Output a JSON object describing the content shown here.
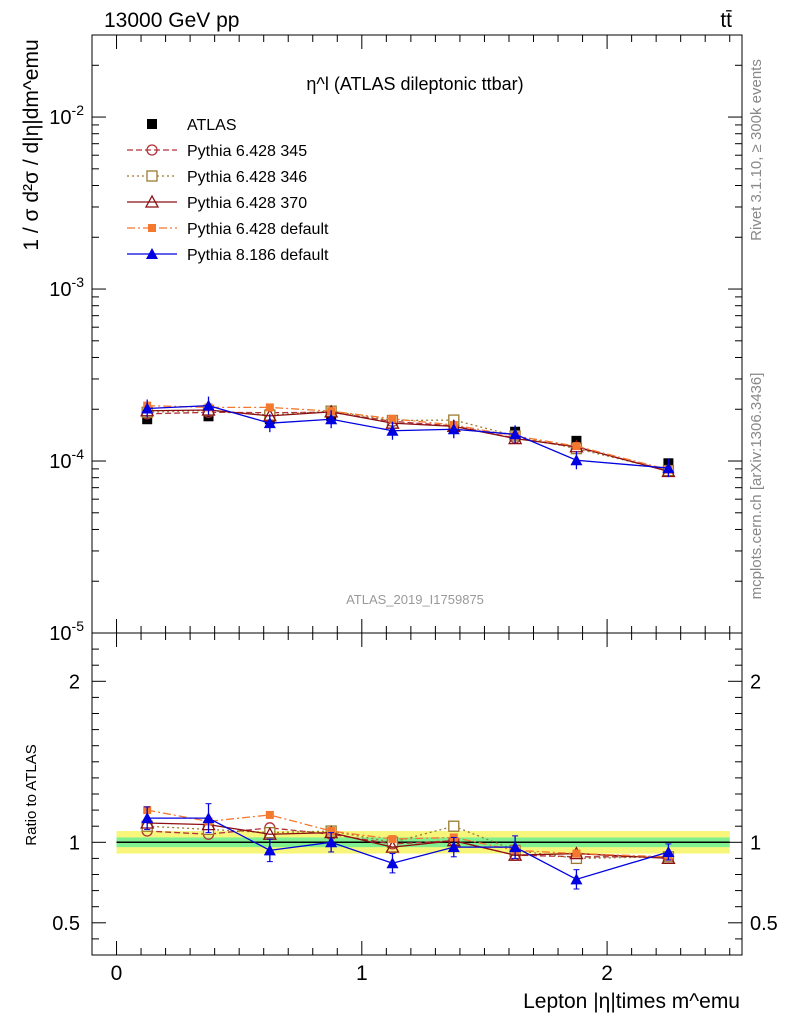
{
  "header": {
    "energy_label": "13000 GeV pp",
    "process_label": "tt̄"
  },
  "side_labels": {
    "rivet": "Rivet 3.1.10, ≥ 300k events",
    "mcplots": "mcplots.cern.ch [arXiv:1306.3436]"
  },
  "colors": {
    "atlas": "#000000",
    "p345": "#b3303a",
    "p346": "#9a7b30",
    "p370": "#8b0f14",
    "p6default": "#f5782f",
    "p8default": "#0000e0",
    "band_inner": "#7fef8f",
    "band_outer": "#f7f57a"
  },
  "chart_data": [
    {
      "type": "line",
      "panel": "main",
      "title": "η^l (ATLAS dileptonic ttbar)",
      "ylabel": "1 / σ d²σ / d|η|dm^emu",
      "watermark": "ATLAS_2019_I1759875",
      "yscale": "log",
      "ylim": [
        1e-05,
        0.03
      ],
      "xlim": [
        -0.1,
        2.55
      ],
      "y_ticks": [
        "10^-5",
        "10^-4",
        "10^-3",
        "10^-2"
      ],
      "x": [
        0.125,
        0.375,
        0.625,
        0.875,
        1.125,
        1.375,
        1.625,
        1.875,
        2.25
      ],
      "series": [
        {
          "name": "ATLAS",
          "key": "atlas",
          "marker": "square-filled",
          "dash": "none",
          "values": [
            0.000175,
            0.000182,
            0.000175,
            0.000183,
            0.000172,
            0.000158,
            0.000148,
            0.000131,
            9.7e-05
          ]
        },
        {
          "name": "Pythia 6.428 345",
          "key": "p345",
          "marker": "circle-open",
          "dash": "6,3",
          "values": [
            0.000188,
            0.000192,
            0.000191,
            0.000192,
            0.00017,
            0.00016,
            0.000136,
            0.00012,
            8.8e-05
          ]
        },
        {
          "name": "Pythia 6.428 346",
          "key": "p346",
          "marker": "square-open",
          "dash": "2,3",
          "values": [
            0.000192,
            0.000197,
            0.000185,
            0.000195,
            0.000172,
            0.000173,
            0.00014,
            0.000118,
            8.8e-05
          ]
        },
        {
          "name": "Pythia 6.428 370",
          "key": "p370",
          "marker": "triangle-open",
          "dash": "none",
          "values": [
            0.000196,
            0.000198,
            0.000183,
            0.000193,
            0.000166,
            0.000159,
            0.000135,
            0.000121,
            8.7e-05
          ]
        },
        {
          "name": "Pythia 6.428 default",
          "key": "p6default",
          "marker": "square-filled-small",
          "dash": "8,3,2,3",
          "values": [
            0.00021,
            0.000205,
            0.000205,
            0.000195,
            0.000176,
            0.000162,
            0.00014,
            0.000122,
            8.9e-05
          ]
        },
        {
          "name": "Pythia 8.186 default",
          "key": "p8default",
          "marker": "triangle-filled",
          "dash": "none",
          "values": [
            0.000202,
            0.00021,
            0.000166,
            0.000175,
            0.00015,
            0.000153,
            0.000143,
            0.000101,
            9.1e-05
          ]
        }
      ]
    },
    {
      "type": "line",
      "panel": "ratio",
      "ylabel": "Ratio to ATLAS",
      "xlabel": "Lepton |η|times m^emu",
      "ylim": [
        0.3,
        2.3
      ],
      "xlim": [
        -0.1,
        2.55
      ],
      "y_ticks": [
        0.5,
        1,
        2
      ],
      "x_ticks": [
        0,
        1,
        2
      ],
      "x": [
        0.125,
        0.375,
        0.625,
        0.875,
        1.125,
        1.375,
        1.625,
        1.875,
        2.25
      ],
      "bands": {
        "inner": 0.03,
        "outer": 0.07
      },
      "series": [
        {
          "name": "Pythia 6.428 345",
          "key": "p345",
          "values": [
            1.07,
            1.05,
            1.09,
            1.05,
            0.99,
            1.01,
            0.92,
            0.91,
            0.91
          ]
        },
        {
          "name": "Pythia 6.428 346",
          "key": "p346",
          "values": [
            1.1,
            1.08,
            1.06,
            1.07,
            1.0,
            1.1,
            0.95,
            0.9,
            0.91
          ]
        },
        {
          "name": "Pythia 6.428 370",
          "key": "p370",
          "values": [
            1.12,
            1.11,
            1.05,
            1.06,
            0.97,
            1.01,
            0.92,
            0.93,
            0.9
          ]
        },
        {
          "name": "Pythia 6.428 default",
          "key": "p6default",
          "values": [
            1.2,
            1.13,
            1.17,
            1.07,
            1.02,
            1.03,
            0.95,
            0.93,
            0.91
          ]
        },
        {
          "name": "Pythia 8.186 default",
          "key": "p8default",
          "values": [
            1.15,
            1.15,
            0.95,
            1.0,
            0.87,
            0.97,
            0.97,
            0.77,
            0.94
          ],
          "err": [
            0.07,
            0.09,
            0.07,
            0.06,
            0.06,
            0.06,
            0.07,
            0.06,
            0.05
          ]
        }
      ]
    }
  ]
}
